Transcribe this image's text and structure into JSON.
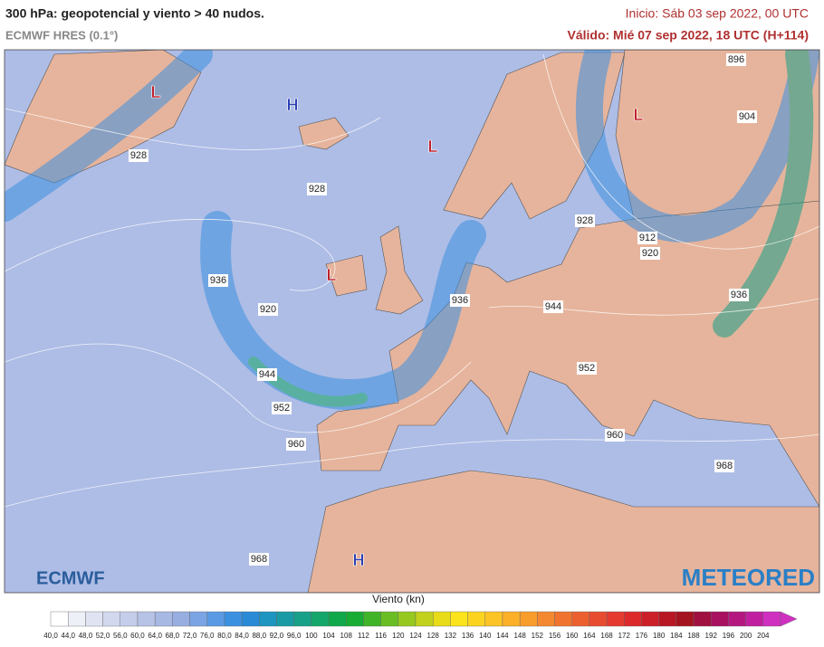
{
  "header": {
    "title": "300 hPa: geopotencial y viento > 40 nudos.",
    "subtitle": "ECMWF HRES (0.1°)",
    "init": "Inicio: Sáb 03 sep 2022, 00 UTC",
    "valid": "Válido: Mié 07 sep 2022, 18 UTC (H+114)"
  },
  "map": {
    "contour_labels": [
      "896",
      "904",
      "928",
      "928",
      "928",
      "912",
      "920",
      "936",
      "936",
      "936",
      "920",
      "944",
      "944",
      "952",
      "952",
      "960",
      "960",
      "968",
      "968"
    ],
    "pressure_centers": [
      "L",
      "H",
      "L",
      "L",
      "L",
      "H"
    ]
  },
  "logos": {
    "left": "ECMWF",
    "right": "METEORED"
  },
  "legend": {
    "title": "Viento (kn)",
    "labels": [
      "40,0",
      "44,0",
      "48,0",
      "52,0",
      "56,0",
      "60,0",
      "64,0",
      "68,0",
      "72,0",
      "76,0",
      "80,0",
      "84,0",
      "88,0",
      "92,0",
      "96,0",
      "100",
      "104",
      "108",
      "112",
      "116",
      "120",
      "124",
      "128",
      "132",
      "136",
      "140",
      "144",
      "148",
      "152",
      "156",
      "160",
      "164",
      "168",
      "172",
      "176",
      "180",
      "184",
      "188",
      "192",
      "196",
      "200",
      "204"
    ],
    "colors": [
      "#ffffff",
      "#eef0f8",
      "#e0e4f2",
      "#d2d8ee",
      "#c4cdea",
      "#b6c2e6",
      "#a7b8e3",
      "#98aee0",
      "#7aa4e4",
      "#5a9ae4",
      "#3c90e0",
      "#2a8ad6",
      "#1e94c0",
      "#1a9aa4",
      "#18a088",
      "#14a66a",
      "#10a84a",
      "#18ac34",
      "#40b428",
      "#6abe24",
      "#96c820",
      "#c2d21c",
      "#e8dc18",
      "#fce41c",
      "#fcd420",
      "#fcc424",
      "#fcb028",
      "#f89c2c",
      "#f48830",
      "#f07430",
      "#ec6030",
      "#e84c30",
      "#e43a30",
      "#dc2a2c",
      "#cc2028",
      "#b81824",
      "#a41420",
      "#a01040",
      "#a81060",
      "#b41880",
      "#c020a0",
      "#d030c0"
    ]
  }
}
